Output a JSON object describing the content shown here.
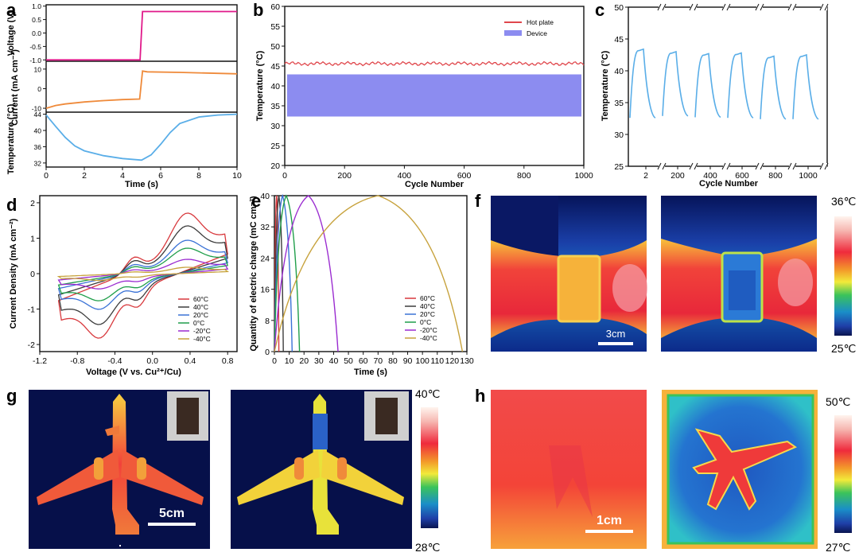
{
  "panel_labels": {
    "a": "a",
    "b": "b",
    "c": "c",
    "d": "d",
    "e": "e",
    "f": "f",
    "g": "g",
    "h": "h"
  },
  "colors": {
    "hot": "#e0474c",
    "device": "#8c8cf0",
    "voltage": "#e0198a",
    "current": "#ef8a3a",
    "temp_line": "#5aaee8",
    "cv": [
      "#d8393d",
      "#3c3c3c",
      "#3a72d6",
      "#1f9e4a",
      "#9a2bd0",
      "#c7a23c"
    ]
  },
  "chart_data": [
    {
      "id": "a",
      "type": "line",
      "xlabel": "Time (s)",
      "xticks": [
        "0",
        "2",
        "4",
        "6",
        "8",
        "10"
      ],
      "xlim": [
        0,
        10
      ],
      "subplots": [
        {
          "ylabel": "Voltage (V)",
          "yticks": [
            "1.0",
            "0.5",
            "0.0",
            "-0.5",
            "-1.0"
          ],
          "ylim": [
            -1.05,
            1.05
          ],
          "x": [
            0,
            4.9,
            4.92,
            5.05,
            5.2,
            10
          ],
          "y": [
            -1.0,
            -1.0,
            -1.0,
            0.8,
            0.8,
            0.8
          ]
        },
        {
          "ylabel": "Current (mA cm⁻²)",
          "yticks": [
            "10",
            "0",
            "-10"
          ],
          "ylim": [
            -12,
            14
          ],
          "x": [
            0,
            0.5,
            1,
            2,
            3,
            4,
            4.9,
            5.05,
            5.3,
            7,
            10
          ],
          "y": [
            -10,
            -8.6,
            -7.8,
            -6.8,
            -6.1,
            -5.6,
            -5.3,
            9.0,
            8.6,
            8.3,
            7.6
          ]
        },
        {
          "ylabel": "Temperature (°C)",
          "yticks": [
            "44",
            "40",
            "36",
            "32"
          ],
          "ylim": [
            31,
            44.5
          ],
          "x": [
            0,
            0.5,
            1,
            1.5,
            2,
            3,
            4,
            5,
            5.5,
            6,
            6.5,
            7,
            8,
            9,
            10
          ],
          "y": [
            43.8,
            41,
            38.3,
            36.2,
            35,
            33.8,
            33.1,
            32.7,
            34,
            36.6,
            39.5,
            41.7,
            43.3,
            43.8,
            44
          ]
        }
      ]
    },
    {
      "id": "b",
      "type": "line",
      "xlabel": "Cycle Number",
      "ylabel": "Temperature (°C)",
      "xticks": [
        "0",
        "200",
        "400",
        "600",
        "800",
        "1000"
      ],
      "yticks": [
        "60",
        "55",
        "50",
        "45",
        "40",
        "35",
        "30",
        "25",
        "20"
      ],
      "xlim": [
        0,
        1000
      ],
      "ylim": [
        20,
        60
      ],
      "series": [
        {
          "name": "Hot plate",
          "mean": 45.6,
          "noise": 0.5
        },
        {
          "name": "Device",
          "low": 32.3,
          "high": 42.9
        }
      ],
      "legend": [
        "Hot plate",
        "Device"
      ]
    },
    {
      "id": "c",
      "type": "line",
      "xlabel": "Cycle Number",
      "ylabel": "Temperature (°C)",
      "xticks": [
        "2",
        "200",
        "400",
        "600",
        "800",
        "1000"
      ],
      "yticks": [
        "50",
        "45",
        "40",
        "35",
        "30",
        "25"
      ],
      "ylim": [
        25,
        50
      ],
      "cycles": [
        {
          "low": 32.6,
          "high": 43.4
        },
        {
          "low": 32.9,
          "high": 43.0
        },
        {
          "low": 32.7,
          "high": 42.7
        },
        {
          "low": 32.6,
          "high": 42.8
        },
        {
          "low": 32.4,
          "high": 42.3
        },
        {
          "low": 32.4,
          "high": 42.5
        }
      ]
    },
    {
      "id": "d",
      "type": "line",
      "xlabel": "Voltage (V vs. Cu²⁺/Cu)",
      "ylabel": "Current Density (mA cm⁻²)",
      "xticks": [
        "-1.2",
        "-0.8",
        "-0.4",
        "0.0",
        "0.4",
        "0.8"
      ],
      "yticks": [
        "2",
        "1",
        "0",
        "-1",
        "-2"
      ],
      "xlim": [
        -1.2,
        0.9
      ],
      "ylim": [
        -2.2,
        2.2
      ],
      "series": [
        {
          "name": "60°C",
          "amp": 1.9
        },
        {
          "name": "40°C",
          "amp": 1.5
        },
        {
          "name": "20°C",
          "amp": 1.05
        },
        {
          "name": "0°C",
          "amp": 0.8
        },
        {
          "name": "-20°C",
          "amp": 0.45
        },
        {
          "name": "-40°C",
          "amp": 0.2
        }
      ]
    },
    {
      "id": "e",
      "type": "line",
      "xlabel": "Time (s)",
      "ylabel": "Quantity of electric charge (mC cm⁻²)",
      "xticks": [
        "0",
        "10",
        "20",
        "30",
        "40",
        "50",
        "60",
        "70",
        "80",
        "90",
        "100",
        "110",
        "120",
        "130"
      ],
      "yticks": [
        "40",
        "32",
        "24",
        "16",
        "8",
        "0"
      ],
      "xlim": [
        0,
        130
      ],
      "ylim": [
        0,
        40
      ],
      "series": [
        {
          "name": "60°C",
          "peak": 1.5,
          "end": 3
        },
        {
          "name": "40°C",
          "peak": 3,
          "end": 6
        },
        {
          "name": "20°C",
          "peak": 5.5,
          "end": 12
        },
        {
          "name": "0°C",
          "peak": 8,
          "end": 17
        },
        {
          "name": "-20°C",
          "peak": 23,
          "end": 43
        },
        {
          "name": "-40°C",
          "peak": 70,
          "end": 127
        }
      ]
    }
  ],
  "panel_f": {
    "max": "36℃",
    "min": "25℃",
    "scale": "3cm"
  },
  "panel_g": {
    "max": "40℃",
    "min": "28℃",
    "scale": "5cm"
  },
  "panel_h": {
    "max": "50℃",
    "min": "27℃",
    "scale": "1cm"
  }
}
